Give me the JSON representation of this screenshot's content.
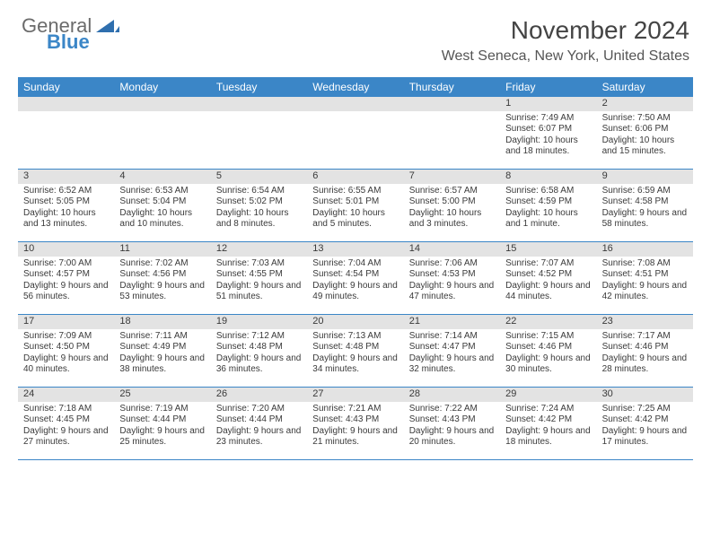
{
  "logo": {
    "general": "General",
    "blue": "Blue"
  },
  "header": {
    "month_year": "November 2024",
    "location": "West Seneca, New York, United States"
  },
  "colors": {
    "header_bar": "#3b86c7",
    "day_number_bg": "#e3e3e3",
    "week_divider": "#3b86c7",
    "text": "#3a3a3a",
    "logo_blue": "#3b86c7",
    "logo_gray": "#6b6b6b"
  },
  "weekdays": [
    "Sunday",
    "Monday",
    "Tuesday",
    "Wednesday",
    "Thursday",
    "Friday",
    "Saturday"
  ],
  "weeks": [
    [
      {
        "n": "",
        "sunrise": "",
        "sunset": "",
        "daylight": ""
      },
      {
        "n": "",
        "sunrise": "",
        "sunset": "",
        "daylight": ""
      },
      {
        "n": "",
        "sunrise": "",
        "sunset": "",
        "daylight": ""
      },
      {
        "n": "",
        "sunrise": "",
        "sunset": "",
        "daylight": ""
      },
      {
        "n": "",
        "sunrise": "",
        "sunset": "",
        "daylight": ""
      },
      {
        "n": "1",
        "sunrise": "Sunrise: 7:49 AM",
        "sunset": "Sunset: 6:07 PM",
        "daylight": "Daylight: 10 hours and 18 minutes."
      },
      {
        "n": "2",
        "sunrise": "Sunrise: 7:50 AM",
        "sunset": "Sunset: 6:06 PM",
        "daylight": "Daylight: 10 hours and 15 minutes."
      }
    ],
    [
      {
        "n": "3",
        "sunrise": "Sunrise: 6:52 AM",
        "sunset": "Sunset: 5:05 PM",
        "daylight": "Daylight: 10 hours and 13 minutes."
      },
      {
        "n": "4",
        "sunrise": "Sunrise: 6:53 AM",
        "sunset": "Sunset: 5:04 PM",
        "daylight": "Daylight: 10 hours and 10 minutes."
      },
      {
        "n": "5",
        "sunrise": "Sunrise: 6:54 AM",
        "sunset": "Sunset: 5:02 PM",
        "daylight": "Daylight: 10 hours and 8 minutes."
      },
      {
        "n": "6",
        "sunrise": "Sunrise: 6:55 AM",
        "sunset": "Sunset: 5:01 PM",
        "daylight": "Daylight: 10 hours and 5 minutes."
      },
      {
        "n": "7",
        "sunrise": "Sunrise: 6:57 AM",
        "sunset": "Sunset: 5:00 PM",
        "daylight": "Daylight: 10 hours and 3 minutes."
      },
      {
        "n": "8",
        "sunrise": "Sunrise: 6:58 AM",
        "sunset": "Sunset: 4:59 PM",
        "daylight": "Daylight: 10 hours and 1 minute."
      },
      {
        "n": "9",
        "sunrise": "Sunrise: 6:59 AM",
        "sunset": "Sunset: 4:58 PM",
        "daylight": "Daylight: 9 hours and 58 minutes."
      }
    ],
    [
      {
        "n": "10",
        "sunrise": "Sunrise: 7:00 AM",
        "sunset": "Sunset: 4:57 PM",
        "daylight": "Daylight: 9 hours and 56 minutes."
      },
      {
        "n": "11",
        "sunrise": "Sunrise: 7:02 AM",
        "sunset": "Sunset: 4:56 PM",
        "daylight": "Daylight: 9 hours and 53 minutes."
      },
      {
        "n": "12",
        "sunrise": "Sunrise: 7:03 AM",
        "sunset": "Sunset: 4:55 PM",
        "daylight": "Daylight: 9 hours and 51 minutes."
      },
      {
        "n": "13",
        "sunrise": "Sunrise: 7:04 AM",
        "sunset": "Sunset: 4:54 PM",
        "daylight": "Daylight: 9 hours and 49 minutes."
      },
      {
        "n": "14",
        "sunrise": "Sunrise: 7:06 AM",
        "sunset": "Sunset: 4:53 PM",
        "daylight": "Daylight: 9 hours and 47 minutes."
      },
      {
        "n": "15",
        "sunrise": "Sunrise: 7:07 AM",
        "sunset": "Sunset: 4:52 PM",
        "daylight": "Daylight: 9 hours and 44 minutes."
      },
      {
        "n": "16",
        "sunrise": "Sunrise: 7:08 AM",
        "sunset": "Sunset: 4:51 PM",
        "daylight": "Daylight: 9 hours and 42 minutes."
      }
    ],
    [
      {
        "n": "17",
        "sunrise": "Sunrise: 7:09 AM",
        "sunset": "Sunset: 4:50 PM",
        "daylight": "Daylight: 9 hours and 40 minutes."
      },
      {
        "n": "18",
        "sunrise": "Sunrise: 7:11 AM",
        "sunset": "Sunset: 4:49 PM",
        "daylight": "Daylight: 9 hours and 38 minutes."
      },
      {
        "n": "19",
        "sunrise": "Sunrise: 7:12 AM",
        "sunset": "Sunset: 4:48 PM",
        "daylight": "Daylight: 9 hours and 36 minutes."
      },
      {
        "n": "20",
        "sunrise": "Sunrise: 7:13 AM",
        "sunset": "Sunset: 4:48 PM",
        "daylight": "Daylight: 9 hours and 34 minutes."
      },
      {
        "n": "21",
        "sunrise": "Sunrise: 7:14 AM",
        "sunset": "Sunset: 4:47 PM",
        "daylight": "Daylight: 9 hours and 32 minutes."
      },
      {
        "n": "22",
        "sunrise": "Sunrise: 7:15 AM",
        "sunset": "Sunset: 4:46 PM",
        "daylight": "Daylight: 9 hours and 30 minutes."
      },
      {
        "n": "23",
        "sunrise": "Sunrise: 7:17 AM",
        "sunset": "Sunset: 4:46 PM",
        "daylight": "Daylight: 9 hours and 28 minutes."
      }
    ],
    [
      {
        "n": "24",
        "sunrise": "Sunrise: 7:18 AM",
        "sunset": "Sunset: 4:45 PM",
        "daylight": "Daylight: 9 hours and 27 minutes."
      },
      {
        "n": "25",
        "sunrise": "Sunrise: 7:19 AM",
        "sunset": "Sunset: 4:44 PM",
        "daylight": "Daylight: 9 hours and 25 minutes."
      },
      {
        "n": "26",
        "sunrise": "Sunrise: 7:20 AM",
        "sunset": "Sunset: 4:44 PM",
        "daylight": "Daylight: 9 hours and 23 minutes."
      },
      {
        "n": "27",
        "sunrise": "Sunrise: 7:21 AM",
        "sunset": "Sunset: 4:43 PM",
        "daylight": "Daylight: 9 hours and 21 minutes."
      },
      {
        "n": "28",
        "sunrise": "Sunrise: 7:22 AM",
        "sunset": "Sunset: 4:43 PM",
        "daylight": "Daylight: 9 hours and 20 minutes."
      },
      {
        "n": "29",
        "sunrise": "Sunrise: 7:24 AM",
        "sunset": "Sunset: 4:42 PM",
        "daylight": "Daylight: 9 hours and 18 minutes."
      },
      {
        "n": "30",
        "sunrise": "Sunrise: 7:25 AM",
        "sunset": "Sunset: 4:42 PM",
        "daylight": "Daylight: 9 hours and 17 minutes."
      }
    ]
  ]
}
